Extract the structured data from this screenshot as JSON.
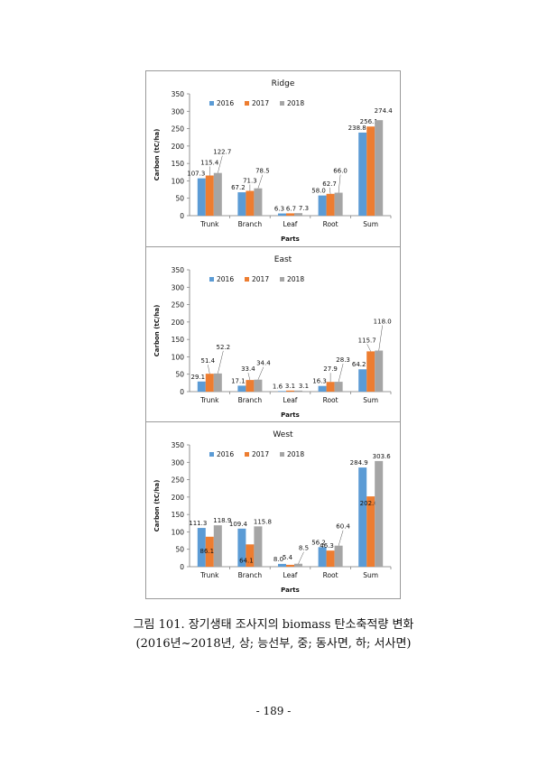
{
  "colors": {
    "2016": "#5B9BD5",
    "2017": "#ED7D31",
    "2018": "#A5A5A5"
  },
  "caption": {
    "line1": "그림 101. 장기생태 조사지의 biomass 탄소축적량 변화",
    "line2": "(2016년~2018년, 상; 능선부, 중; 동사면, 하; 서사면)"
  },
  "page_number": "- 189 -",
  "chart_data": [
    {
      "type": "bar",
      "title": "Ridge",
      "xlabel": "Parts",
      "ylabel": "Carbon (tC/ha)",
      "ylim": [
        0,
        350
      ],
      "yticks": [
        0,
        50,
        100,
        150,
        200,
        250,
        300,
        350
      ],
      "categories": [
        "Trunk",
        "Branch",
        "Leaf",
        "Root",
        "Sum"
      ],
      "legend": [
        "2016",
        "2017",
        "2018"
      ],
      "series": [
        {
          "name": "2016",
          "values": [
            107.3,
            67.2,
            6.3,
            58.0,
            238.8
          ]
        },
        {
          "name": "2017",
          "values": [
            115.4,
            71.3,
            6.7,
            62.7,
            256.1
          ]
        },
        {
          "name": "2018",
          "values": [
            122.7,
            78.5,
            7.3,
            66.0,
            274.4
          ]
        }
      ],
      "labels": [
        [
          "107.3",
          "67.2",
          "6.3",
          "58.0",
          "238.8"
        ],
        [
          "115.4",
          "71.3",
          "6.7",
          "62.7",
          "256.1"
        ],
        [
          "122.7",
          "78.5",
          "7.3",
          "66.0",
          "274.4"
        ]
      ]
    },
    {
      "type": "bar",
      "title": "East",
      "xlabel": "Parts",
      "ylabel": "Carbon (tC/ha)",
      "ylim": [
        0,
        350
      ],
      "yticks": [
        0,
        50,
        100,
        150,
        200,
        250,
        300,
        350
      ],
      "categories": [
        "Trunk",
        "Branch",
        "Leaf",
        "Root",
        "Sum"
      ],
      "legend": [
        "2016",
        "2017",
        "2018"
      ],
      "series": [
        {
          "name": "2016",
          "values": [
            29.1,
            17.1,
            1.6,
            16.3,
            64.2
          ]
        },
        {
          "name": "2017",
          "values": [
            51.4,
            33.4,
            3.1,
            27.9,
            115.7
          ]
        },
        {
          "name": "2018",
          "values": [
            52.2,
            34.4,
            3.1,
            28.3,
            118.0
          ]
        }
      ],
      "labels": [
        [
          "29.1",
          "17.1",
          "1.6",
          "16.3",
          "64.2"
        ],
        [
          "51.4",
          "33.4",
          "3.1",
          "27.9",
          "115.7"
        ],
        [
          "52.2",
          "34.4",
          "3.1",
          "28.3",
          "118.0"
        ]
      ]
    },
    {
      "type": "bar",
      "title": "West",
      "xlabel": "Parts",
      "ylabel": "Carbon (tC/ha)",
      "ylim": [
        0,
        350
      ],
      "yticks": [
        0,
        50,
        100,
        150,
        200,
        250,
        300,
        350
      ],
      "categories": [
        "Trunk",
        "Branch",
        "Leaf",
        "Root",
        "Sum"
      ],
      "legend": [
        "2016",
        "2017",
        "2018"
      ],
      "series": [
        {
          "name": "2016",
          "values": [
            111.3,
            109.4,
            8.0,
            56.2,
            284.9
          ]
        },
        {
          "name": "2017",
          "values": [
            86.1,
            64.1,
            5.4,
            46.3,
            202.0
          ]
        },
        {
          "name": "2018",
          "values": [
            118.9,
            115.8,
            8.5,
            60.4,
            303.6
          ]
        }
      ],
      "labels": [
        [
          "111.3",
          "109.4",
          "8.0",
          "56.2",
          "284.9"
        ],
        [
          "86.1",
          "64.1",
          "5.4",
          "46.3",
          "202.0"
        ],
        [
          "118.9",
          "115.8",
          "8.5",
          "60.4",
          "303.6"
        ]
      ]
    }
  ]
}
